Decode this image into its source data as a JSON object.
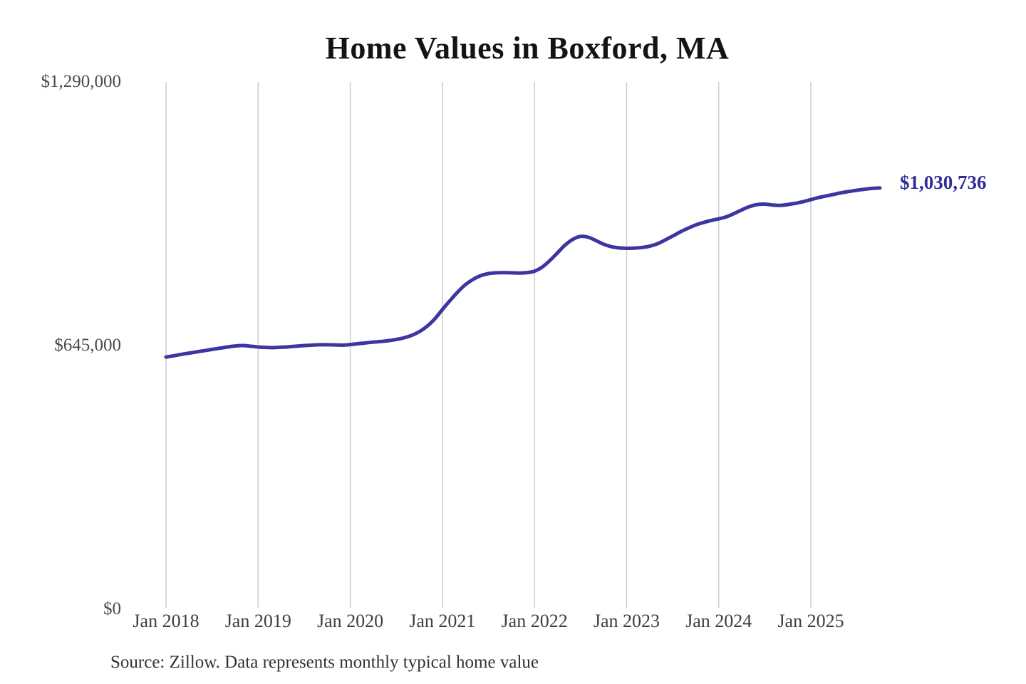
{
  "chart": {
    "colors": {
      "line": "#3d35a0",
      "end_label": "#2f2d9c",
      "gridline": "#cccccc",
      "title": "#141414",
      "y_tick_label": "#4a4a4a",
      "x_tick_label": "#3f3f3f",
      "source": "#333333",
      "background": "#ffffff"
    }
  },
  "chart_data": {
    "type": "line",
    "title": "Home Values in Boxford, MA",
    "xlabel": "",
    "ylabel": "",
    "x_start": "2018-01",
    "x_end": "2025-10",
    "frequency": "monthly",
    "x_tick_labels": [
      "Jan 2018",
      "Jan 2019",
      "Jan 2020",
      "Jan 2021",
      "Jan 2022",
      "Jan 2023",
      "Jan 2024",
      "Jan 2025"
    ],
    "y_ticks": [
      0,
      645000,
      1290000
    ],
    "y_tick_labels": [
      "$0",
      "$645,000",
      "$1,290,000"
    ],
    "ylim": [
      0,
      1290000
    ],
    "grid": "vertical-only",
    "legend": "none",
    "series": [
      {
        "name": "Monthly typical home value",
        "values": [
          617000,
          620000,
          623500,
          626500,
          629500,
          632500,
          635500,
          638500,
          641500,
          644000,
          645000,
          643500,
          641500,
          640500,
          640000,
          641000,
          642000,
          643500,
          645000,
          646000,
          647000,
          647000,
          646500,
          646000,
          647500,
          649500,
          651500,
          653500,
          655000,
          657000,
          660000,
          664000,
          670000,
          679000,
          692000,
          710000,
          733000,
          755000,
          776000,
          794000,
          807000,
          816000,
          821000,
          823000,
          823500,
          823000,
          822500,
          823500,
          827000,
          837000,
          853000,
          872000,
          891000,
          905000,
          912000,
          910000,
          902000,
          893000,
          887000,
          884000,
          883000,
          883500,
          885000,
          888000,
          894000,
          903000,
          913000,
          923000,
          932000,
          940000,
          946000,
          951000,
          955000,
          960000,
          968000,
          977000,
          985000,
          990000,
          991000,
          989000,
          988000,
          990000,
          993000,
          997000,
          1002000,
          1007000,
          1011000,
          1015000,
          1019000,
          1022000,
          1025000,
          1027500,
          1029500,
          1030736
        ]
      }
    ],
    "annotation": {
      "text": "$1,030,736",
      "value": 1030736,
      "position": "end-of-line"
    },
    "source": "Source: Zillow. Data represents monthly typical home value"
  }
}
